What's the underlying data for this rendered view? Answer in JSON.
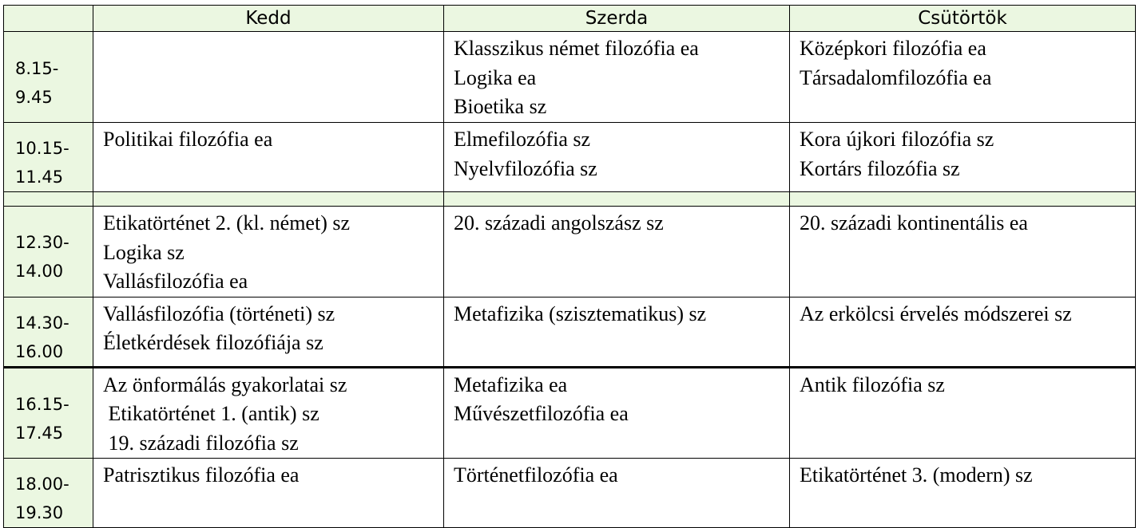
{
  "header": {
    "time": "",
    "days": [
      "Kedd",
      "Szerda",
      "Csütörtök"
    ]
  },
  "colors": {
    "time_bg": "#ebf7e1",
    "header_bg": "#ebf7e1"
  },
  "rows": [
    {
      "time": [
        "8.15-",
        "9.45"
      ],
      "cells": [
        [],
        [
          "Klasszikus német filozófia ea",
          "Logika ea",
          "Bioetika sz"
        ],
        [
          "Középkori filozófia ea",
          "Társadalomfilozófia ea"
        ]
      ]
    },
    {
      "time": [
        "10.15-",
        "11.45"
      ],
      "cells": [
        [
          "Politikai filozófia ea"
        ],
        [
          "Elmefilozófia sz",
          "Nyelvfilozófia sz"
        ],
        [
          "Kora újkori filozófia sz",
          "Kortárs filozófia sz"
        ]
      ]
    },
    {
      "break": true
    },
    {
      "time": [
        "12.30-",
        "14.00"
      ],
      "cells": [
        [
          "Etikatörténet 2. (kl. német) sz",
          "Logika sz",
          "Vallásfilozófia ea"
        ],
        [
          "20. századi angolszász sz"
        ],
        [
          "20. századi kontinentális ea"
        ]
      ]
    },
    {
      "time": [
        "14.30-",
        "16.00"
      ],
      "cells": [
        [
          "Vallásfilozófia (történeti) sz",
          "Életkérdések filozófiája sz"
        ],
        [
          "Metafizika (szisztematikus) sz"
        ],
        [
          "Az erkölcsi érvelés módszerei sz"
        ]
      ]
    },
    {
      "time": [
        "16.15-",
        "17.45"
      ],
      "cells": [
        [
          "Az önformálás gyakorlatai sz",
          " Etikatörténet 1. (antik) sz",
          " 19. századi filozófia sz"
        ],
        [
          "Metafizika ea",
          "Művészetfilozófia ea"
        ],
        [
          "Antik filozófia sz"
        ]
      ]
    },
    {
      "time": [
        "18.00-",
        "19.30"
      ],
      "cells": [
        [
          "Patrisztikus filozófia ea"
        ],
        [
          "Történetfilozófia ea"
        ],
        [
          "Etikatörténet 3. (modern) sz"
        ]
      ]
    }
  ]
}
